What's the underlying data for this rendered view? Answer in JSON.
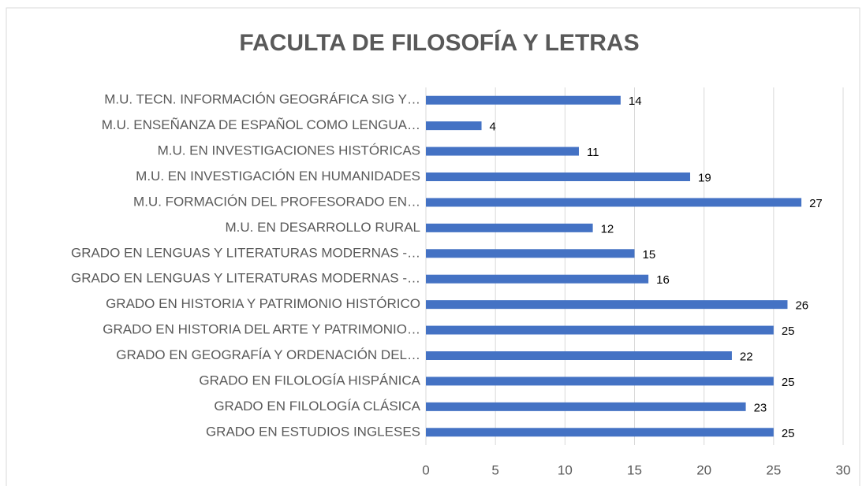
{
  "chart_data": {
    "type": "bar",
    "orientation": "horizontal",
    "title": "FACULTA DE FILOSOFÍA Y LETRAS",
    "categories": [
      "M.U. TECN. INFORMACIÓN GEOGRÁFICA SIG Y…",
      "M.U. ENSEÑANZA DE ESPAÑOL COMO LENGUA…",
      "M.U. EN INVESTIGACIONES HISTÓRICAS",
      "M.U. EN INVESTIGACIÓN EN HUMANIDADES",
      "M.U. FORMACIÓN DEL PROFESORADO EN…",
      "M.U. EN DESARROLLO RURAL",
      "GRADO EN LENGUAS Y LITERATURAS MODERNAS -…",
      "GRADO EN LENGUAS Y LITERATURAS MODERNAS -…",
      "GRADO EN HISTORIA Y PATRIMONIO HISTÓRICO",
      "GRADO EN HISTORIA DEL ARTE Y PATRIMONIO…",
      "GRADO EN GEOGRAFÍA Y ORDENACIÓN DEL…",
      "GRADO EN FILOLOGÍA HISPÁNICA",
      "GRADO EN FILOLOGÍA CLÁSICA",
      "GRADO EN ESTUDIOS INGLESES"
    ],
    "values": [
      14,
      4,
      11,
      19,
      27,
      12,
      15,
      16,
      26,
      25,
      22,
      25,
      23,
      25
    ],
    "color": "#4472c4",
    "xlim": [
      0,
      30
    ],
    "xticks": [
      0,
      5,
      10,
      15,
      20,
      25,
      30
    ],
    "grid": true
  }
}
